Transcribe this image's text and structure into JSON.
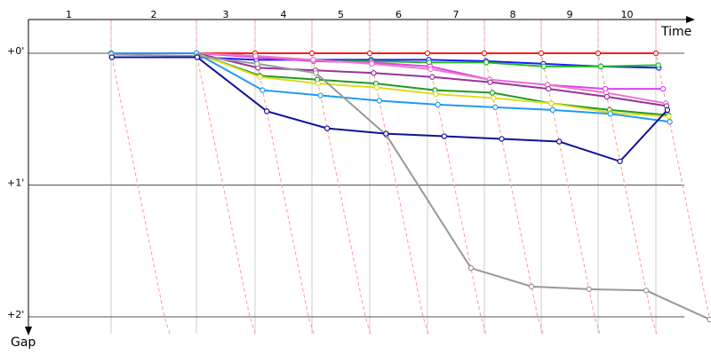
{
  "chart_data": {
    "type": "line",
    "x_label": "Time",
    "y_label": "Gap",
    "categories": [
      "1",
      "2",
      "3",
      "4",
      "5",
      "6",
      "7",
      "8",
      "9",
      "10"
    ],
    "ylim": [
      0,
      2
    ],
    "yticks": [
      {
        "value": 0,
        "label": "+0'"
      },
      {
        "value": 1,
        "label": "+1'"
      },
      {
        "value": 2,
        "label": "+2'"
      }
    ],
    "grid": true,
    "series": [
      {
        "color": "#ff1a1a",
        "values": [
          0,
          0,
          0,
          0,
          0,
          0,
          0,
          0,
          0,
          0
        ]
      },
      {
        "color": "#1a1aff",
        "values": [
          0.03,
          0.03,
          0.05,
          0.05,
          0.05,
          0.05,
          0.06,
          0.08,
          0.1,
          0.11
        ]
      },
      {
        "color": "#22bb22",
        "values": [
          0,
          0,
          0.02,
          0.06,
          0.06,
          0.07,
          0.07,
          0.1,
          0.1,
          0.09
        ]
      },
      {
        "color": "#dd44ee",
        "values": [
          0,
          0,
          0.03,
          0.06,
          0.07,
          0.1,
          0.2,
          0.24,
          0.27,
          0.27
        ]
      },
      {
        "color": "#ee77cc",
        "values": [
          0,
          0,
          0.02,
          0.05,
          0.08,
          0.12,
          0.2,
          0.24,
          0.3,
          0.38
        ]
      },
      {
        "color": "#993399",
        "values": [
          0,
          0,
          0.11,
          0.13,
          0.15,
          0.18,
          0.22,
          0.27,
          0.33,
          0.4
        ]
      },
      {
        "color": "#229922",
        "values": [
          0,
          0,
          0.17,
          0.2,
          0.23,
          0.28,
          0.3,
          0.38,
          0.43,
          0.47
        ]
      },
      {
        "color": "#dddd22",
        "values": [
          0,
          0,
          0.18,
          0.23,
          0.26,
          0.31,
          0.34,
          0.38,
          0.45,
          0.48
        ]
      },
      {
        "color": "#2299ee",
        "values": [
          0,
          0,
          0.28,
          0.32,
          0.36,
          0.39,
          0.41,
          0.43,
          0.46,
          0.52
        ]
      },
      {
        "color": "#999999",
        "values": [
          0.01,
          0.02,
          0.08,
          0.15,
          0.62,
          1.63,
          1.77,
          1.79,
          1.8,
          2.02
        ]
      },
      {
        "color": "#11119a",
        "values": [
          0.03,
          0.03,
          0.44,
          0.57,
          0.61,
          0.63,
          0.65,
          0.67,
          0.82,
          0.43
        ]
      }
    ]
  }
}
